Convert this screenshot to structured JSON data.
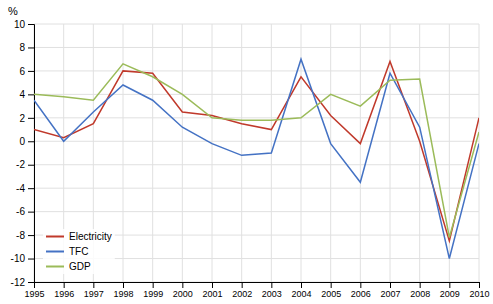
{
  "chart_data": {
    "type": "line",
    "ylabel": "%",
    "x": [
      1995,
      1996,
      1997,
      1998,
      1999,
      2000,
      2001,
      2002,
      2003,
      2004,
      2005,
      2006,
      2007,
      2008,
      2009,
      2010
    ],
    "series": [
      {
        "name": "Electricity",
        "color": "#c0392b",
        "values": [
          1.0,
          0.3,
          1.5,
          6.0,
          5.8,
          2.5,
          2.2,
          1.5,
          1.0,
          5.5,
          2.2,
          -0.2,
          6.8,
          0.0,
          -8.5,
          2.0
        ]
      },
      {
        "name": "TFC",
        "color": "#4472c4",
        "values": [
          3.5,
          0.0,
          2.5,
          4.8,
          3.5,
          1.2,
          -0.2,
          -1.2,
          -1.0,
          7.0,
          -0.2,
          -3.5,
          5.8,
          1.2,
          -10.0,
          -0.2
        ]
      },
      {
        "name": "GDP",
        "color": "#9bbb59",
        "values": [
          4.0,
          3.8,
          3.5,
          6.6,
          5.5,
          4.0,
          2.0,
          1.8,
          1.8,
          2.0,
          4.0,
          3.0,
          5.2,
          5.3,
          -8.2,
          0.8
        ]
      }
    ],
    "xlim": [
      1995,
      2010
    ],
    "xticks": [
      1995,
      1996,
      1997,
      1998,
      1999,
      2000,
      2001,
      2002,
      2003,
      2004,
      2005,
      2006,
      2007,
      2008,
      2009,
      2010
    ],
    "ylim": [
      -12,
      10
    ],
    "yticks": [
      -12,
      -10,
      -8,
      -6,
      -4,
      -2,
      0,
      2,
      4,
      6,
      8,
      10
    ],
    "grid": true,
    "legend": "lower left"
  }
}
